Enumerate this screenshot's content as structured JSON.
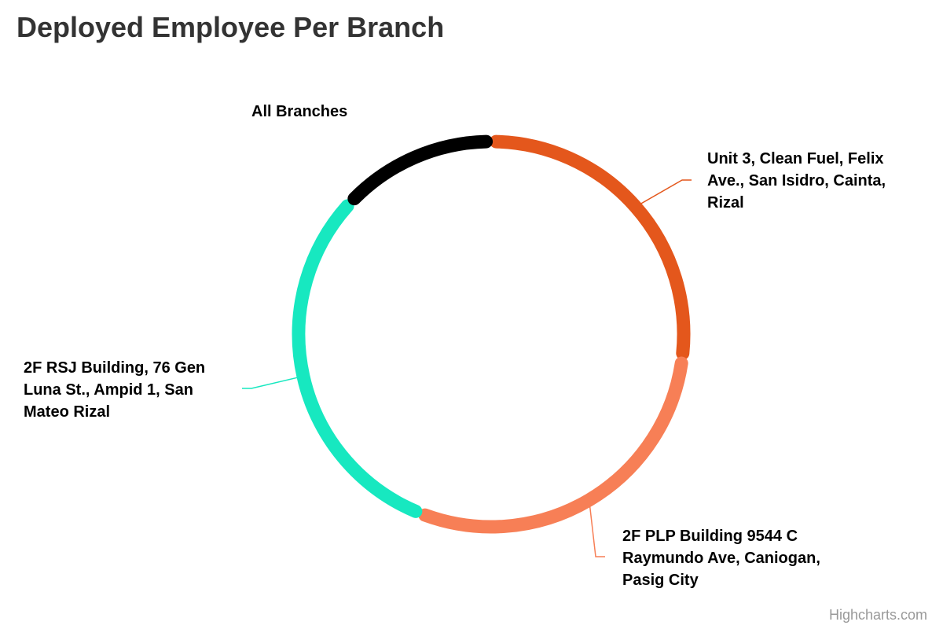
{
  "title": "Deployed Employee Per Branch",
  "credits": "Highcharts.com",
  "chart_data": {
    "type": "pie",
    "title": "Deployed Employee Per Branch",
    "inner_label": "",
    "labels": [
      "Unit 3, Clean Fuel, Felix Ave., San Isidro, Cainta, Rizal",
      "2F PLP Building 9544 C Raymundo Ave, Caniogan, Pasig City",
      "2F RSJ Building, 76 Gen Luna St., Ampid 1, San Mateo Rizal",
      "All Branches"
    ],
    "values": [
      27,
      29,
      31,
      13
    ],
    "colors": [
      "#E4571C",
      "#F77F56",
      "#17E8C0",
      "#000000"
    ],
    "legend": "none"
  }
}
